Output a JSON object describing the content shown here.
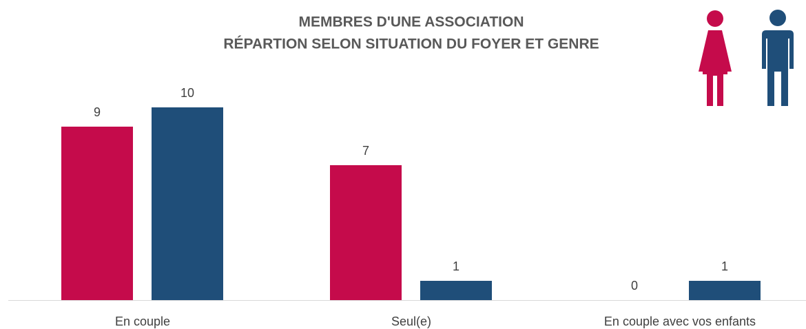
{
  "chart_data": {
    "type": "bar",
    "title": [
      "MEMBRES D'UNE ASSOCIATION",
      "RÉPARTION SELON SITUATION DU FOYER ET GENRE"
    ],
    "categories": [
      "En couple",
      "Seul(e)",
      "En couple avec vos enfants"
    ],
    "series": [
      {
        "color": "#c50b4b",
        "values": [
          9,
          7,
          0
        ]
      },
      {
        "color": "#1f4e79",
        "values": [
          10,
          1,
          1
        ]
      }
    ]
  }
}
